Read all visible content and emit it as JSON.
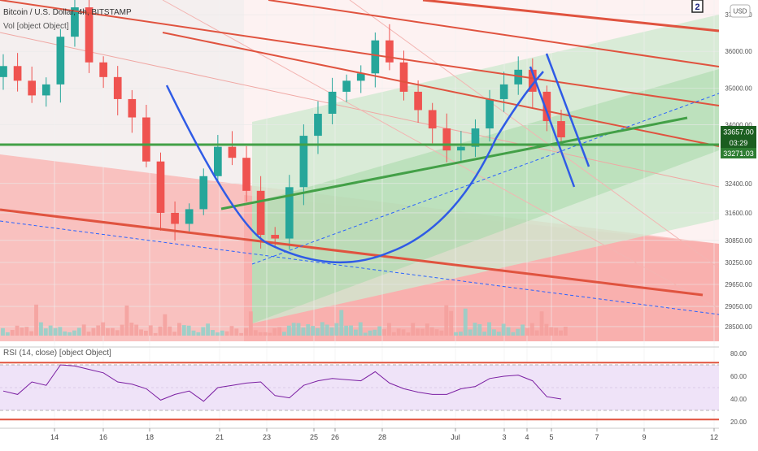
{
  "header": {
    "symbol_title": "Bitcoin / U.S. Dollar, 4h, BITSTAMP",
    "volume_label": "Vol [object Object]",
    "rsi_label": "RSI (14, close) [object Object]",
    "currency_button": "USD",
    "badge": "2"
  },
  "price_axis": {
    "ticks": [
      "37000.00",
      "36000.00",
      "35000.00",
      "34000.00",
      "32400.00",
      "31600.00",
      "30850.00",
      "30250.00",
      "29650.00",
      "29050.00",
      "28500.00"
    ],
    "current_price": "33657.00",
    "countdown": "03:29",
    "line_price": "33271.03"
  },
  "rsi_axis": {
    "ticks": [
      "80.00",
      "60.00",
      "40.00",
      "20.00"
    ]
  },
  "time_axis": {
    "ticks": [
      "14",
      "16",
      "18",
      "21",
      "23",
      "25",
      "26",
      "28",
      "Jul",
      "3",
      "4",
      "5",
      "7",
      "9",
      "12"
    ]
  },
  "colors": {
    "up": "#26a69a",
    "down": "#ef5350",
    "red_line": "#e0533f",
    "green_line": "#4caf50",
    "blue": "#2962ff",
    "rsi_line": "#7b1fa2",
    "rsi_bg": "#efe3f8",
    "price_label": "#1b5e20"
  },
  "chart_data": [
    {
      "type": "candlestick",
      "title": "Bitcoin / U.S. Dollar, 4h, BITSTAMP",
      "y_axis": "price (USD)",
      "ylim": [
        28100,
        37400
      ],
      "x_labels": [
        "14",
        "16",
        "18",
        "21",
        "23",
        "25",
        "26",
        "28",
        "Jul",
        "3",
        "4",
        "5",
        "7",
        "9",
        "12"
      ],
      "approx_close_path": [
        35600,
        35200,
        34800,
        35100,
        36400,
        37200,
        35700,
        35300,
        34700,
        34200,
        33000,
        31600,
        31300,
        31700,
        32600,
        33400,
        33100,
        32200,
        31000,
        30900,
        32300,
        33700,
        34300,
        34900,
        35200,
        35400,
        36300,
        35700,
        34900,
        34400,
        33900,
        33300,
        33400,
        33900,
        34700,
        35100,
        35500,
        34900,
        34100,
        33657
      ],
      "current_price": 33657.0,
      "horizontal_line": 33271.03
    },
    {
      "type": "line",
      "title": "RSI (14, close)",
      "ylim": [
        15,
        85
      ],
      "ticks": [
        80,
        60,
        40,
        20
      ],
      "bands": [
        70,
        30
      ],
      "values": [
        47,
        44,
        55,
        52,
        70,
        69,
        66,
        63,
        55,
        53,
        49,
        39,
        44,
        47,
        38,
        50,
        52,
        54,
        55,
        43,
        41,
        52,
        56,
        58,
        57,
        56,
        64,
        54,
        49,
        46,
        44,
        44,
        49,
        51,
        58,
        60,
        61,
        56,
        42,
        40
      ]
    }
  ]
}
